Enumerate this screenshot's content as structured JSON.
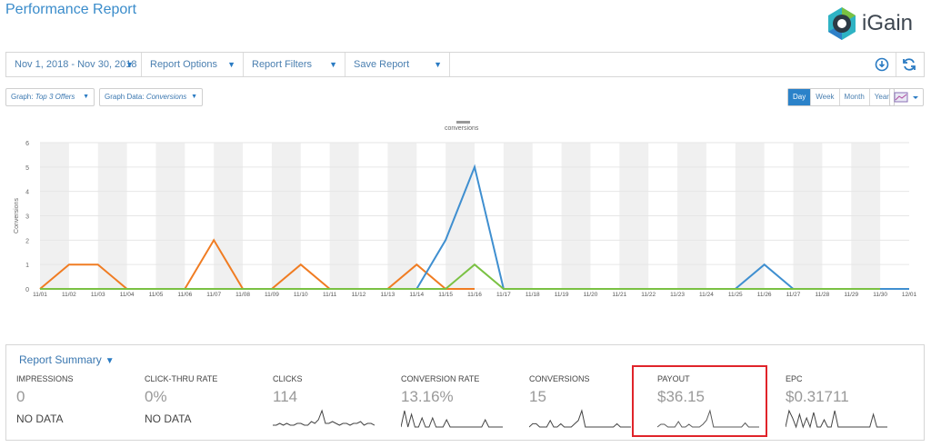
{
  "header": {
    "title": "Performance Report",
    "logo_text": "iGain"
  },
  "toolbar": {
    "date_range": "Nov 1, 2018 - Nov 30, 2018",
    "report_options": "Report Options",
    "report_filters": "Report Filters",
    "save_report": "Save Report"
  },
  "controls": {
    "graph_label": "Graph:",
    "graph_value": "Top 3 Offers",
    "graph_data_label": "Graph Data:",
    "graph_data_value": "Conversions",
    "period_tabs": [
      "Day",
      "Week",
      "Month",
      "Year"
    ],
    "active_period": "Day"
  },
  "chart_data": {
    "type": "line",
    "legend_label": "conversions",
    "ylabel": "Conversions",
    "ylim": [
      0,
      6
    ],
    "yticks": [
      0,
      1,
      2,
      3,
      4,
      5,
      6
    ],
    "categories": [
      "11/01",
      "11/02",
      "11/03",
      "11/04",
      "11/05",
      "11/06",
      "11/07",
      "11/08",
      "11/09",
      "11/10",
      "11/11",
      "11/12",
      "11/13",
      "11/14",
      "11/15",
      "11/16",
      "11/17",
      "11/18",
      "11/19",
      "11/20",
      "11/21",
      "11/22",
      "11/23",
      "11/24",
      "11/25",
      "11/26",
      "11/27",
      "11/28",
      "11/29",
      "11/30",
      "12/01"
    ],
    "series": [
      {
        "color": "#f07c22",
        "values": [
          0,
          1,
          1,
          0,
          0,
          0,
          2,
          0,
          0,
          1,
          0,
          0,
          0,
          1,
          0,
          0,
          null,
          null,
          null,
          null,
          null,
          null,
          null,
          null,
          null,
          null,
          null,
          null,
          null,
          null,
          null
        ]
      },
      {
        "color": "#3f8fd0",
        "values": [
          null,
          null,
          null,
          null,
          null,
          null,
          null,
          null,
          null,
          null,
          null,
          null,
          null,
          0,
          2,
          5,
          0,
          0,
          0,
          0,
          0,
          0,
          0,
          0,
          0,
          1,
          0,
          0,
          0,
          0,
          0
        ]
      },
      {
        "color": "#7ac143",
        "values": [
          0,
          0,
          0,
          0,
          0,
          0,
          0,
          0,
          0,
          0,
          0,
          0,
          0,
          0,
          0,
          1,
          0,
          0,
          0,
          0,
          0,
          0,
          0,
          0,
          0,
          0,
          0,
          0,
          0,
          0,
          null
        ]
      }
    ]
  },
  "summary": {
    "title": "Report Summary",
    "metrics": [
      {
        "name": "IMPRESSIONS",
        "value": "0",
        "nodata": "NO DATA",
        "spark": []
      },
      {
        "name": "CLICK-THRU RATE",
        "value": "0%",
        "nodata": "NO DATA",
        "spark": []
      },
      {
        "name": "CLICKS",
        "value": "114",
        "nodata": "",
        "spark": [
          1,
          1,
          2,
          1,
          2,
          1,
          1,
          2,
          2,
          1,
          1,
          3,
          2,
          4,
          9,
          2,
          2,
          3,
          2,
          1,
          2,
          2,
          1,
          2,
          2,
          3,
          1,
          2,
          2,
          1
        ]
      },
      {
        "name": "CONVERSION RATE",
        "value": "13.16%",
        "nodata": "",
        "spark": [
          0,
          9,
          0,
          7,
          0,
          0,
          5,
          0,
          0,
          5,
          0,
          0,
          0,
          4,
          0,
          0,
          0,
          0,
          0,
          0,
          0,
          0,
          0,
          0,
          4,
          0,
          0,
          0,
          0,
          0
        ]
      },
      {
        "name": "CONVERSIONS",
        "value": "15",
        "nodata": "",
        "spark": [
          0,
          3,
          3,
          0,
          0,
          0,
          6,
          0,
          0,
          3,
          0,
          0,
          0,
          3,
          6,
          15,
          0,
          0,
          0,
          0,
          0,
          0,
          0,
          0,
          0,
          3,
          0,
          0,
          0,
          0
        ]
      },
      {
        "name": "PAYOUT",
        "value": "$36.15",
        "nodata": "",
        "spark": [
          0,
          2,
          2,
          0,
          0,
          0,
          4,
          0,
          0,
          2,
          0,
          0,
          0,
          2,
          5,
          12,
          0,
          0,
          0,
          0,
          0,
          0,
          0,
          0,
          0,
          3,
          0,
          0,
          0,
          0
        ]
      },
      {
        "name": "EPC",
        "value": "$0.31711",
        "nodata": "",
        "spark": [
          0,
          9,
          5,
          0,
          7,
          0,
          5,
          0,
          8,
          0,
          0,
          4,
          0,
          0,
          9,
          0,
          0,
          0,
          0,
          0,
          0,
          0,
          0,
          0,
          0,
          7,
          0,
          0,
          0,
          0
        ]
      }
    ]
  }
}
